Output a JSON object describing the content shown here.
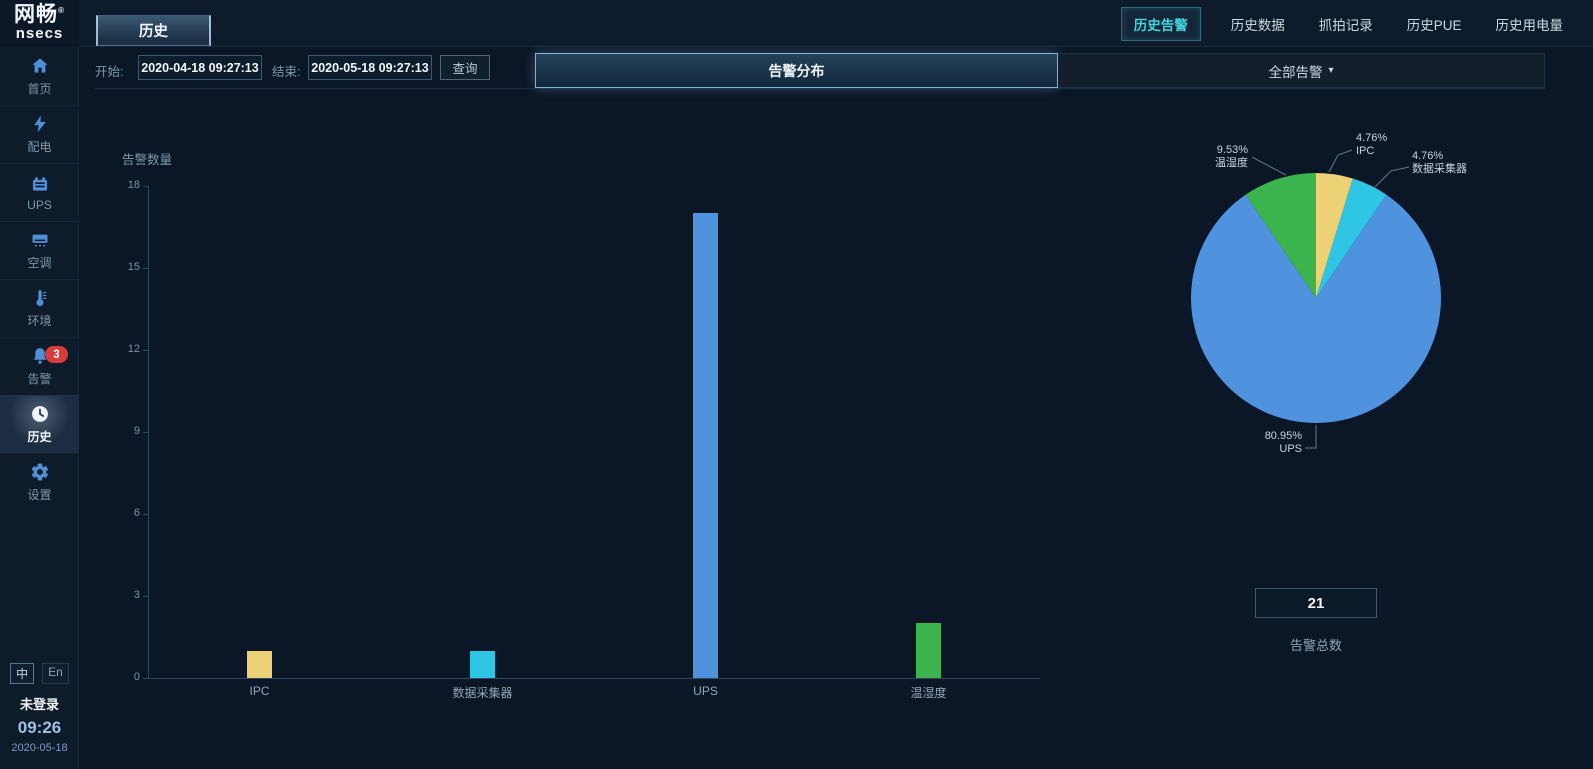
{
  "logo": {
    "brand_cn": "网畅",
    "reg": "®",
    "brand_en": "nsecs"
  },
  "icons": {
    "caret_down": "▾"
  },
  "header": {
    "page_tab": "历史",
    "tabs": [
      {
        "label": "历史告警",
        "selected": true
      },
      {
        "label": "历史数据",
        "selected": false
      },
      {
        "label": "抓拍记录",
        "selected": false
      },
      {
        "label": "历史PUE",
        "selected": false
      },
      {
        "label": "历史用电量",
        "selected": false
      }
    ]
  },
  "sidebar": {
    "items": [
      {
        "label": "首页",
        "icon": "home-icon"
      },
      {
        "label": "配电",
        "icon": "power-icon"
      },
      {
        "label": "UPS",
        "icon": "ups-battery-icon"
      },
      {
        "label": "空调",
        "icon": "air-conditioner-icon"
      },
      {
        "label": "环境",
        "icon": "thermometer-icon"
      },
      {
        "label": "告警",
        "icon": "bell-icon",
        "badge": "3"
      },
      {
        "label": "历史",
        "icon": "clock-icon",
        "selected": true
      },
      {
        "label": "设置",
        "icon": "gear-icon"
      }
    ],
    "footer": {
      "lang_zh": "中",
      "lang_en": "En",
      "login_status": "未登录",
      "time": "09:26",
      "date": "2020-05-18"
    }
  },
  "filters": {
    "start_label": "开始:",
    "start_value": "2020-04-18 09:27:13",
    "end_label": "结束:",
    "end_value": "2020-05-18 09:27:13",
    "query_label": "查询",
    "section_tab": "告警分布",
    "scope_dropdown": "全部告警"
  },
  "summary": {
    "total_value": "21",
    "total_label": "告警总数"
  },
  "chart_data": [
    {
      "type": "bar",
      "title": "告警数量",
      "ylabel": "告警数量",
      "xlabel": "",
      "categories": [
        "IPC",
        "数据采集器",
        "UPS",
        "温湿度"
      ],
      "values": [
        1,
        1,
        17,
        2
      ],
      "colors": [
        "#ecd074",
        "#2fc6e6",
        "#4f92de",
        "#3cb44e"
      ],
      "ylim": [
        0,
        18
      ],
      "yticks": [
        0,
        3,
        6,
        9,
        12,
        15,
        18
      ],
      "grid": false,
      "legend": "none"
    },
    {
      "type": "pie",
      "total": 21,
      "slices": [
        {
          "name": "IPC",
          "pct": 4.76,
          "label": "4.76%",
          "color": "#ecd074"
        },
        {
          "name": "数据采集器",
          "pct": 4.76,
          "label": "4.76%",
          "color": "#2fc6e6"
        },
        {
          "name": "UPS",
          "pct": 80.95,
          "label": "80.95%",
          "color": "#4f92de"
        },
        {
          "name": "温湿度",
          "pct": 9.53,
          "label": "9.53%",
          "color": "#3cb44e"
        }
      ]
    }
  ]
}
